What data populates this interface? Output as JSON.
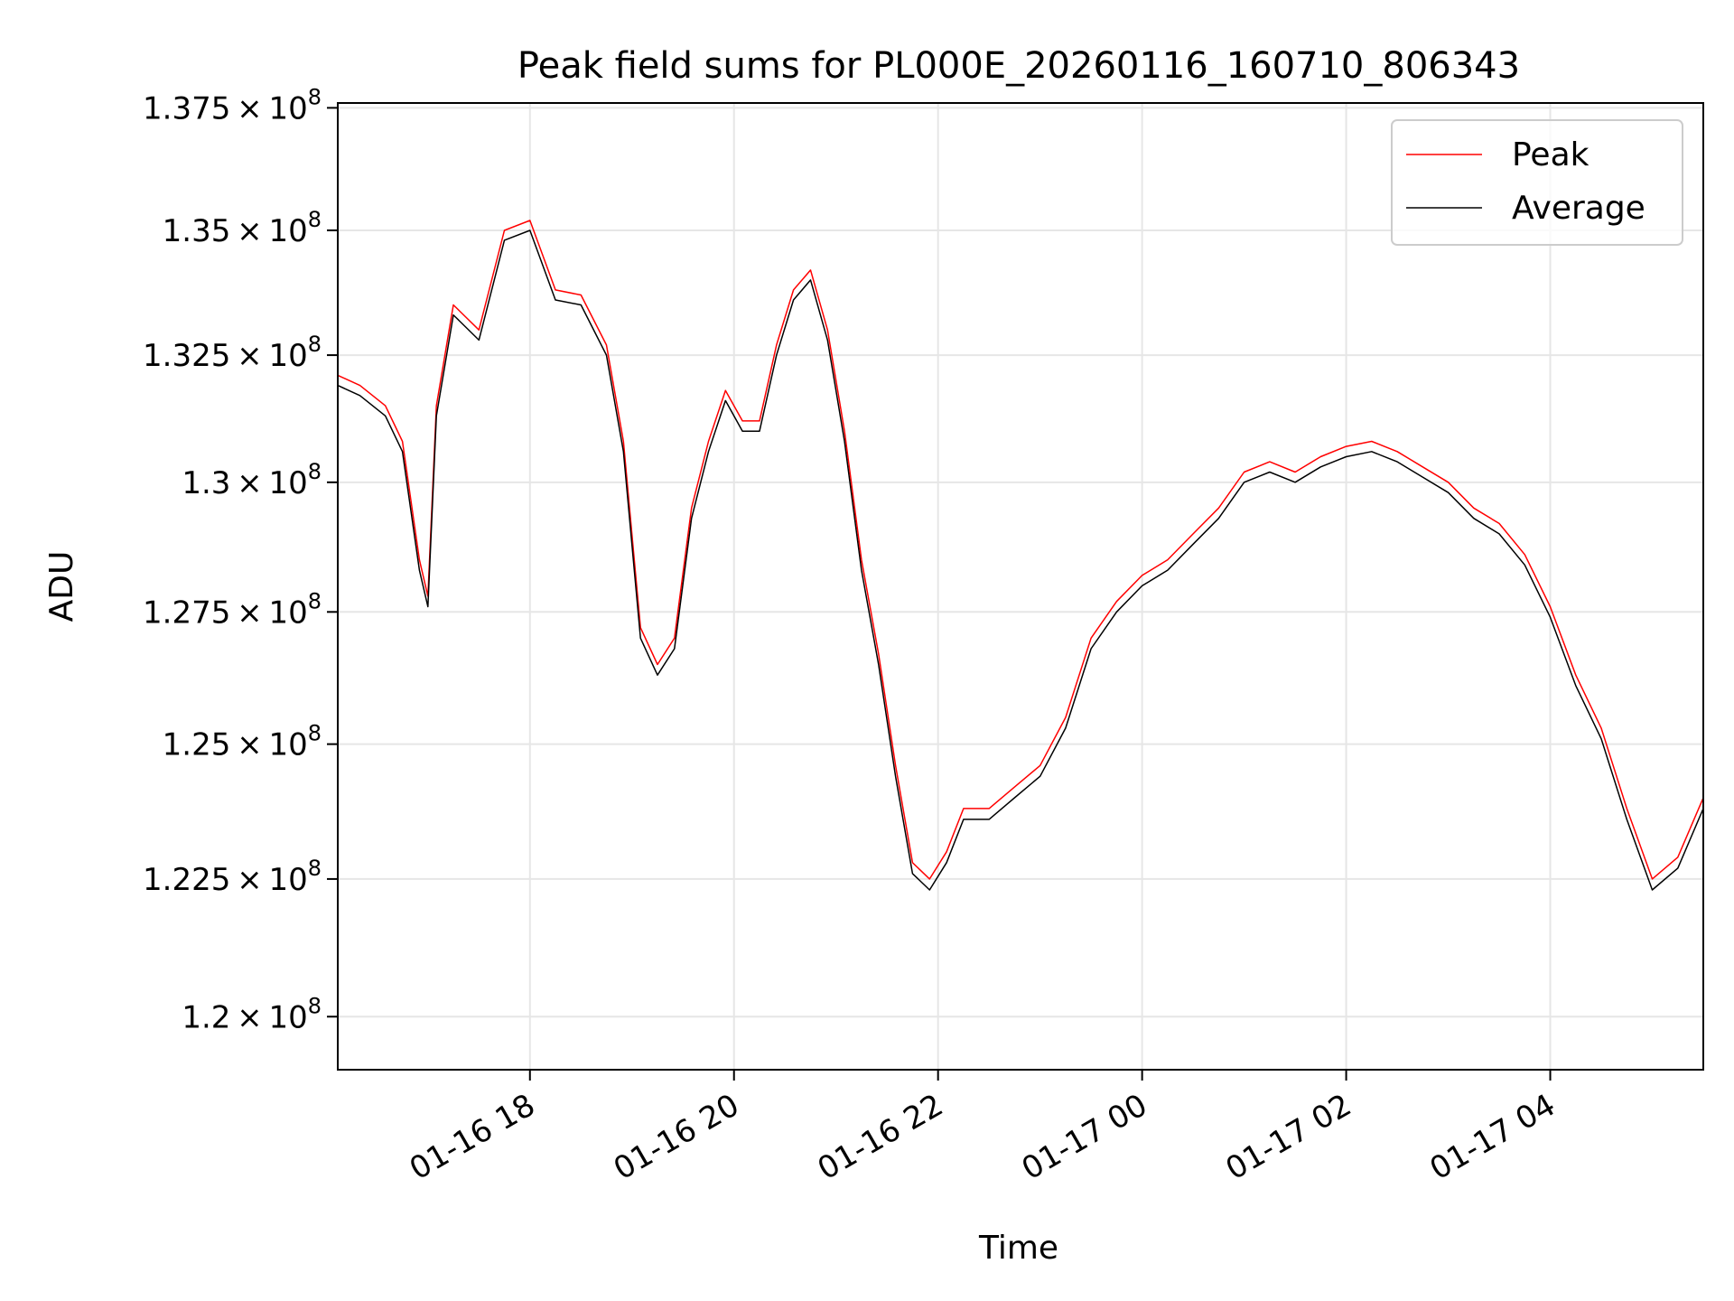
{
  "chart_data": {
    "type": "line",
    "title": "Peak field sums for PL000E_20260116_160710_806343",
    "xlabel": "Time",
    "ylabel": "ADU",
    "xlim": [
      "2026-01-16 16:07",
      "2026-01-17 05:30"
    ],
    "ylim": [
      119050000,
      137600000
    ],
    "x_ticks": [
      {
        "t": "2026-01-16 18:00",
        "label": "01-16 18"
      },
      {
        "t": "2026-01-16 20:00",
        "label": "01-16 20"
      },
      {
        "t": "2026-01-16 22:00",
        "label": "01-16 22"
      },
      {
        "t": "2026-01-17 00:00",
        "label": "01-17 00"
      },
      {
        "t": "2026-01-17 02:00",
        "label": "01-17 02"
      },
      {
        "t": "2026-01-17 04:00",
        "label": "01-17 04"
      }
    ],
    "y_ticks": [
      {
        "value": 120000000,
        "mantissa": "1.2"
      },
      {
        "value": 122500000,
        "mantissa": "1.225"
      },
      {
        "value": 125000000,
        "mantissa": "1.25"
      },
      {
        "value": 127500000,
        "mantissa": "1.275"
      },
      {
        "value": 130000000,
        "mantissa": "1.3"
      },
      {
        "value": 132500000,
        "mantissa": "1.325"
      },
      {
        "value": 135000000,
        "mantissa": "1.35"
      },
      {
        "value": 137500000,
        "mantissa": "1.375"
      }
    ],
    "y_tick_base": "10",
    "y_tick_exponent": "8",
    "y_tick_times": "×",
    "grid": true,
    "legend_position": "top-right",
    "series": [
      {
        "name": "Peak",
        "color": "#ff0000",
        "points": [
          [
            "2026-01-16 16:07",
            132100000
          ],
          [
            "2026-01-16 16:20",
            131900000
          ],
          [
            "2026-01-16 16:35",
            131500000
          ],
          [
            "2026-01-16 16:45",
            130800000
          ],
          [
            "2026-01-16 16:55",
            128500000
          ],
          [
            "2026-01-16 17:00",
            127800000
          ],
          [
            "2026-01-16 17:05",
            131500000
          ],
          [
            "2026-01-16 17:15",
            133500000
          ],
          [
            "2026-01-16 17:30",
            133000000
          ],
          [
            "2026-01-16 17:45",
            135000000
          ],
          [
            "2026-01-16 18:00",
            135200000
          ],
          [
            "2026-01-16 18:15",
            133800000
          ],
          [
            "2026-01-16 18:30",
            133700000
          ],
          [
            "2026-01-16 18:45",
            132700000
          ],
          [
            "2026-01-16 18:55",
            130800000
          ],
          [
            "2026-01-16 19:05",
            127200000
          ],
          [
            "2026-01-16 19:15",
            126500000
          ],
          [
            "2026-01-16 19:25",
            127000000
          ],
          [
            "2026-01-16 19:35",
            129500000
          ],
          [
            "2026-01-16 19:45",
            130800000
          ],
          [
            "2026-01-16 19:55",
            131800000
          ],
          [
            "2026-01-16 20:05",
            131200000
          ],
          [
            "2026-01-16 20:15",
            131200000
          ],
          [
            "2026-01-16 20:25",
            132700000
          ],
          [
            "2026-01-16 20:35",
            133800000
          ],
          [
            "2026-01-16 20:45",
            134200000
          ],
          [
            "2026-01-16 20:55",
            133000000
          ],
          [
            "2026-01-16 21:05",
            131000000
          ],
          [
            "2026-01-16 21:15",
            128500000
          ],
          [
            "2026-01-16 21:25",
            126700000
          ],
          [
            "2026-01-16 21:35",
            124600000
          ],
          [
            "2026-01-16 21:45",
            122800000
          ],
          [
            "2026-01-16 21:55",
            122500000
          ],
          [
            "2026-01-16 22:05",
            123000000
          ],
          [
            "2026-01-16 22:15",
            123800000
          ],
          [
            "2026-01-16 22:30",
            123800000
          ],
          [
            "2026-01-16 22:45",
            124200000
          ],
          [
            "2026-01-16 23:00",
            124600000
          ],
          [
            "2026-01-16 23:15",
            125500000
          ],
          [
            "2026-01-16 23:30",
            127000000
          ],
          [
            "2026-01-16 23:45",
            127700000
          ],
          [
            "2026-01-17 00:00",
            128200000
          ],
          [
            "2026-01-17 00:15",
            128500000
          ],
          [
            "2026-01-17 00:30",
            129000000
          ],
          [
            "2026-01-17 00:45",
            129500000
          ],
          [
            "2026-01-17 01:00",
            130200000
          ],
          [
            "2026-01-17 01:15",
            130400000
          ],
          [
            "2026-01-17 01:30",
            130200000
          ],
          [
            "2026-01-17 01:45",
            130500000
          ],
          [
            "2026-01-17 02:00",
            130700000
          ],
          [
            "2026-01-17 02:15",
            130800000
          ],
          [
            "2026-01-17 02:30",
            130600000
          ],
          [
            "2026-01-17 02:45",
            130300000
          ],
          [
            "2026-01-17 03:00",
            130000000
          ],
          [
            "2026-01-17 03:15",
            129500000
          ],
          [
            "2026-01-17 03:30",
            129200000
          ],
          [
            "2026-01-17 03:45",
            128600000
          ],
          [
            "2026-01-17 04:00",
            127600000
          ],
          [
            "2026-01-17 04:15",
            126300000
          ],
          [
            "2026-01-17 04:30",
            125300000
          ],
          [
            "2026-01-17 04:45",
            123800000
          ],
          [
            "2026-01-17 05:00",
            122500000
          ],
          [
            "2026-01-17 05:15",
            122900000
          ],
          [
            "2026-01-17 05:30",
            124000000
          ]
        ]
      },
      {
        "name": "Average",
        "color": "#000000",
        "points": [
          [
            "2026-01-16 16:07",
            131900000
          ],
          [
            "2026-01-16 16:20",
            131700000
          ],
          [
            "2026-01-16 16:35",
            131300000
          ],
          [
            "2026-01-16 16:45",
            130600000
          ],
          [
            "2026-01-16 16:55",
            128300000
          ],
          [
            "2026-01-16 17:00",
            127600000
          ],
          [
            "2026-01-16 17:05",
            131300000
          ],
          [
            "2026-01-16 17:15",
            133300000
          ],
          [
            "2026-01-16 17:30",
            132800000
          ],
          [
            "2026-01-16 17:45",
            134800000
          ],
          [
            "2026-01-16 18:00",
            135000000
          ],
          [
            "2026-01-16 18:15",
            133600000
          ],
          [
            "2026-01-16 18:30",
            133500000
          ],
          [
            "2026-01-16 18:45",
            132500000
          ],
          [
            "2026-01-16 18:55",
            130600000
          ],
          [
            "2026-01-16 19:05",
            127000000
          ],
          [
            "2026-01-16 19:15",
            126300000
          ],
          [
            "2026-01-16 19:25",
            126800000
          ],
          [
            "2026-01-16 19:35",
            129300000
          ],
          [
            "2026-01-16 19:45",
            130600000
          ],
          [
            "2026-01-16 19:55",
            131600000
          ],
          [
            "2026-01-16 20:05",
            131000000
          ],
          [
            "2026-01-16 20:15",
            131000000
          ],
          [
            "2026-01-16 20:25",
            132500000
          ],
          [
            "2026-01-16 20:35",
            133600000
          ],
          [
            "2026-01-16 20:45",
            134000000
          ],
          [
            "2026-01-16 20:55",
            132800000
          ],
          [
            "2026-01-16 21:05",
            130800000
          ],
          [
            "2026-01-16 21:15",
            128300000
          ],
          [
            "2026-01-16 21:25",
            126500000
          ],
          [
            "2026-01-16 21:35",
            124400000
          ],
          [
            "2026-01-16 21:45",
            122600000
          ],
          [
            "2026-01-16 21:55",
            122300000
          ],
          [
            "2026-01-16 22:05",
            122800000
          ],
          [
            "2026-01-16 22:15",
            123600000
          ],
          [
            "2026-01-16 22:30",
            123600000
          ],
          [
            "2026-01-16 22:45",
            124000000
          ],
          [
            "2026-01-16 23:00",
            124400000
          ],
          [
            "2026-01-16 23:15",
            125300000
          ],
          [
            "2026-01-16 23:30",
            126800000
          ],
          [
            "2026-01-16 23:45",
            127500000
          ],
          [
            "2026-01-17 00:00",
            128000000
          ],
          [
            "2026-01-17 00:15",
            128300000
          ],
          [
            "2026-01-17 00:30",
            128800000
          ],
          [
            "2026-01-17 00:45",
            129300000
          ],
          [
            "2026-01-17 01:00",
            130000000
          ],
          [
            "2026-01-17 01:15",
            130200000
          ],
          [
            "2026-01-17 01:30",
            130000000
          ],
          [
            "2026-01-17 01:45",
            130300000
          ],
          [
            "2026-01-17 02:00",
            130500000
          ],
          [
            "2026-01-17 02:15",
            130600000
          ],
          [
            "2026-01-17 02:30",
            130400000
          ],
          [
            "2026-01-17 02:45",
            130100000
          ],
          [
            "2026-01-17 03:00",
            129800000
          ],
          [
            "2026-01-17 03:15",
            129300000
          ],
          [
            "2026-01-17 03:30",
            129000000
          ],
          [
            "2026-01-17 03:45",
            128400000
          ],
          [
            "2026-01-17 04:00",
            127400000
          ],
          [
            "2026-01-17 04:15",
            126100000
          ],
          [
            "2026-01-17 04:30",
            125100000
          ],
          [
            "2026-01-17 04:45",
            123600000
          ],
          [
            "2026-01-17 05:00",
            122300000
          ],
          [
            "2026-01-17 05:15",
            122700000
          ],
          [
            "2026-01-17 05:30",
            123800000
          ]
        ]
      }
    ]
  }
}
